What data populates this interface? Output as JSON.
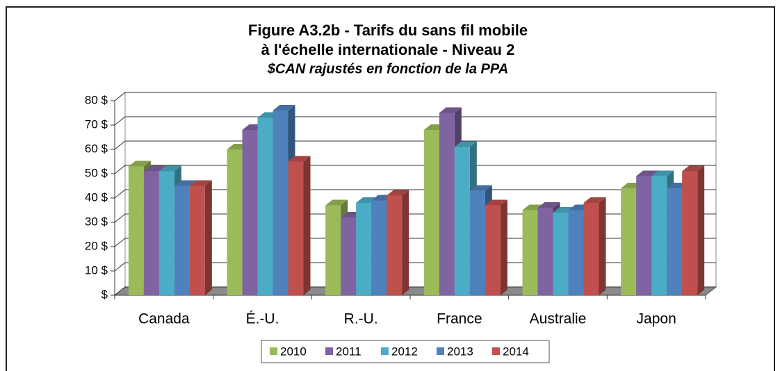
{
  "chart_data": {
    "type": "bar3d",
    "title": "Figure A3.2b - Tarifs du sans fil mobile",
    "title_line2": "à l'échelle internationale - Niveau 2",
    "subtitle": "$CAN rajustés en fonction de la PPA",
    "categories": [
      "Canada",
      "É.-U.",
      "R.-U.",
      "France",
      "Australie",
      "Japon"
    ],
    "series": [
      {
        "name": "2010",
        "color": "#9bbb59",
        "values": [
          53,
          60,
          37,
          68,
          35,
          44
        ]
      },
      {
        "name": "2011",
        "color": "#8064a2",
        "values": [
          51,
          68,
          32,
          75,
          36,
          49
        ]
      },
      {
        "name": "2012",
        "color": "#4bacc6",
        "values": [
          51,
          73,
          38,
          61,
          34,
          49
        ]
      },
      {
        "name": "2013",
        "color": "#4f81bd",
        "values": [
          45,
          76,
          39,
          43,
          35,
          44
        ]
      },
      {
        "name": "2014",
        "color": "#c0504d",
        "values": [
          45,
          55,
          41,
          37,
          38,
          51
        ]
      }
    ],
    "ylim": [
      0,
      80
    ],
    "yticks": [
      {
        "value": 0,
        "label": "$"
      },
      {
        "value": 10,
        "label": "10 $"
      },
      {
        "value": 20,
        "label": "20 $"
      },
      {
        "value": 30,
        "label": "30 $"
      },
      {
        "value": 40,
        "label": "40 $"
      },
      {
        "value": 50,
        "label": "50 $"
      },
      {
        "value": 60,
        "label": "60 $"
      },
      {
        "value": 70,
        "label": "70 $"
      },
      {
        "value": 80,
        "label": "80 $"
      }
    ],
    "grid": true,
    "legend": "bottom"
  }
}
